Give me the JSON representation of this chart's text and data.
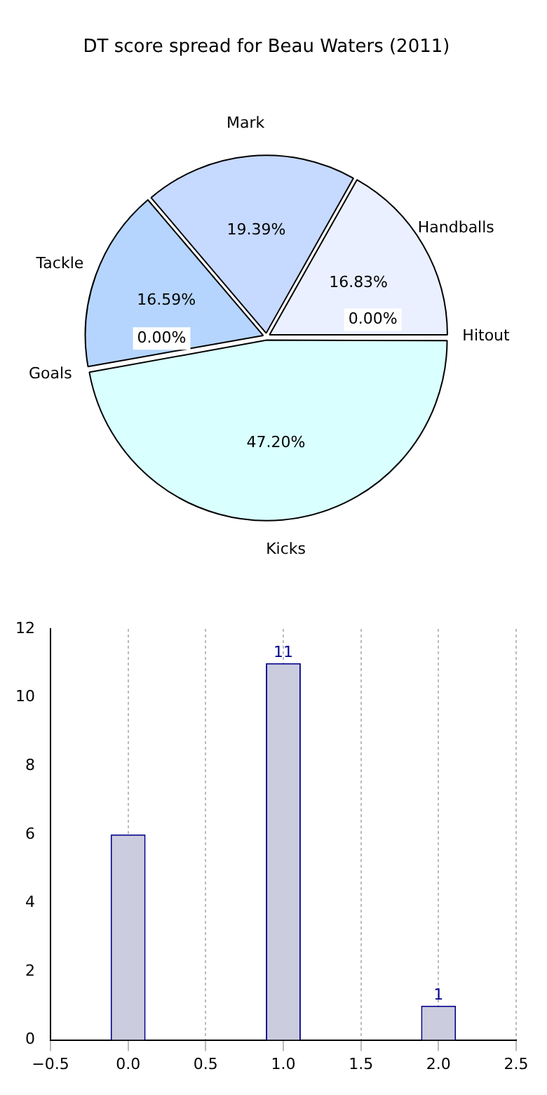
{
  "chart_data": [
    {
      "type": "pie",
      "title": "DT score spread for Beau Waters (2011)",
      "categories": [
        "Hitout",
        "Kicks",
        "Goals",
        "Tackle",
        "Mark",
        "Handballs"
      ],
      "values": [
        0.0,
        47.2,
        0.0,
        16.59,
        19.39,
        16.83
      ],
      "value_labels": [
        "0.00%",
        "47.20%",
        "0.00%",
        "16.59%",
        "19.39%",
        "16.83%"
      ],
      "colors": [
        "#e0e8f8",
        "#d9ffff",
        "#a8c8f0",
        "#b5d5ff",
        "#c6d9ff",
        "#eaf0ff"
      ]
    },
    {
      "type": "bar",
      "x": [
        0,
        1,
        2
      ],
      "values": [
        6,
        11,
        1
      ],
      "color": "#ccccdf",
      "value_labels": [
        null,
        "11",
        "1"
      ],
      "xlim": [
        -0.5,
        2.5
      ],
      "xticks": [
        {
          "value": -0.5,
          "label": "−0.5"
        },
        {
          "value": 0,
          "label": "0.0"
        },
        {
          "value": 0.5,
          "label": "0.5"
        },
        {
          "value": 1,
          "label": "1.0"
        },
        {
          "value": 1.5,
          "label": "1.5"
        },
        {
          "value": 2,
          "label": "2.0"
        },
        {
          "value": 2.5,
          "label": "2.5"
        }
      ],
      "ylim": [
        0,
        12
      ],
      "yticks": [
        0,
        2,
        4,
        6,
        8,
        10,
        12
      ],
      "grid": "x"
    }
  ]
}
